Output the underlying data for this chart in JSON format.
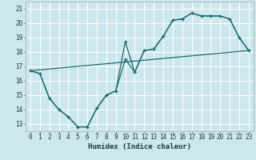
{
  "xlabel": "Humidex (Indice chaleur)",
  "bg_color": "#cce8ee",
  "grid_color": "#ffffff",
  "line_color": "#1a6b6b",
  "xlim": [
    -0.5,
    23.5
  ],
  "ylim": [
    12.5,
    21.5
  ],
  "xticks": [
    0,
    1,
    2,
    3,
    4,
    5,
    6,
    7,
    8,
    9,
    10,
    11,
    12,
    13,
    14,
    15,
    16,
    17,
    18,
    19,
    20,
    21,
    22,
    23
  ],
  "yticks": [
    13,
    14,
    15,
    16,
    17,
    18,
    19,
    20,
    21
  ],
  "line1_x": [
    0,
    1,
    2,
    3,
    4,
    5,
    6,
    7,
    8,
    9,
    10,
    11,
    12,
    13,
    14,
    15,
    16,
    17,
    18,
    19,
    20,
    21,
    22,
    23
  ],
  "line1_y": [
    16.7,
    16.5,
    14.8,
    14.0,
    13.5,
    12.8,
    12.8,
    14.1,
    15.0,
    15.3,
    18.7,
    16.6,
    18.1,
    18.2,
    19.1,
    20.2,
    20.3,
    20.7,
    20.5,
    20.5,
    20.5,
    20.3,
    19.0,
    18.1
  ],
  "line2_x": [
    0,
    1,
    2,
    3,
    4,
    5,
    6,
    7,
    8,
    9,
    10,
    11,
    12,
    13,
    14,
    15,
    16,
    17,
    18,
    19,
    20,
    21,
    22,
    23
  ],
  "line2_y": [
    16.7,
    16.5,
    14.8,
    14.0,
    13.5,
    12.8,
    12.8,
    14.1,
    15.0,
    15.3,
    17.5,
    16.6,
    18.1,
    18.2,
    19.1,
    20.2,
    20.3,
    20.7,
    20.5,
    20.5,
    20.5,
    20.3,
    19.0,
    18.1
  ],
  "line3_x": [
    0,
    23
  ],
  "line3_y": [
    16.7,
    18.1
  ],
  "xlabel_fontsize": 6.5,
  "tick_fontsize": 5.5
}
